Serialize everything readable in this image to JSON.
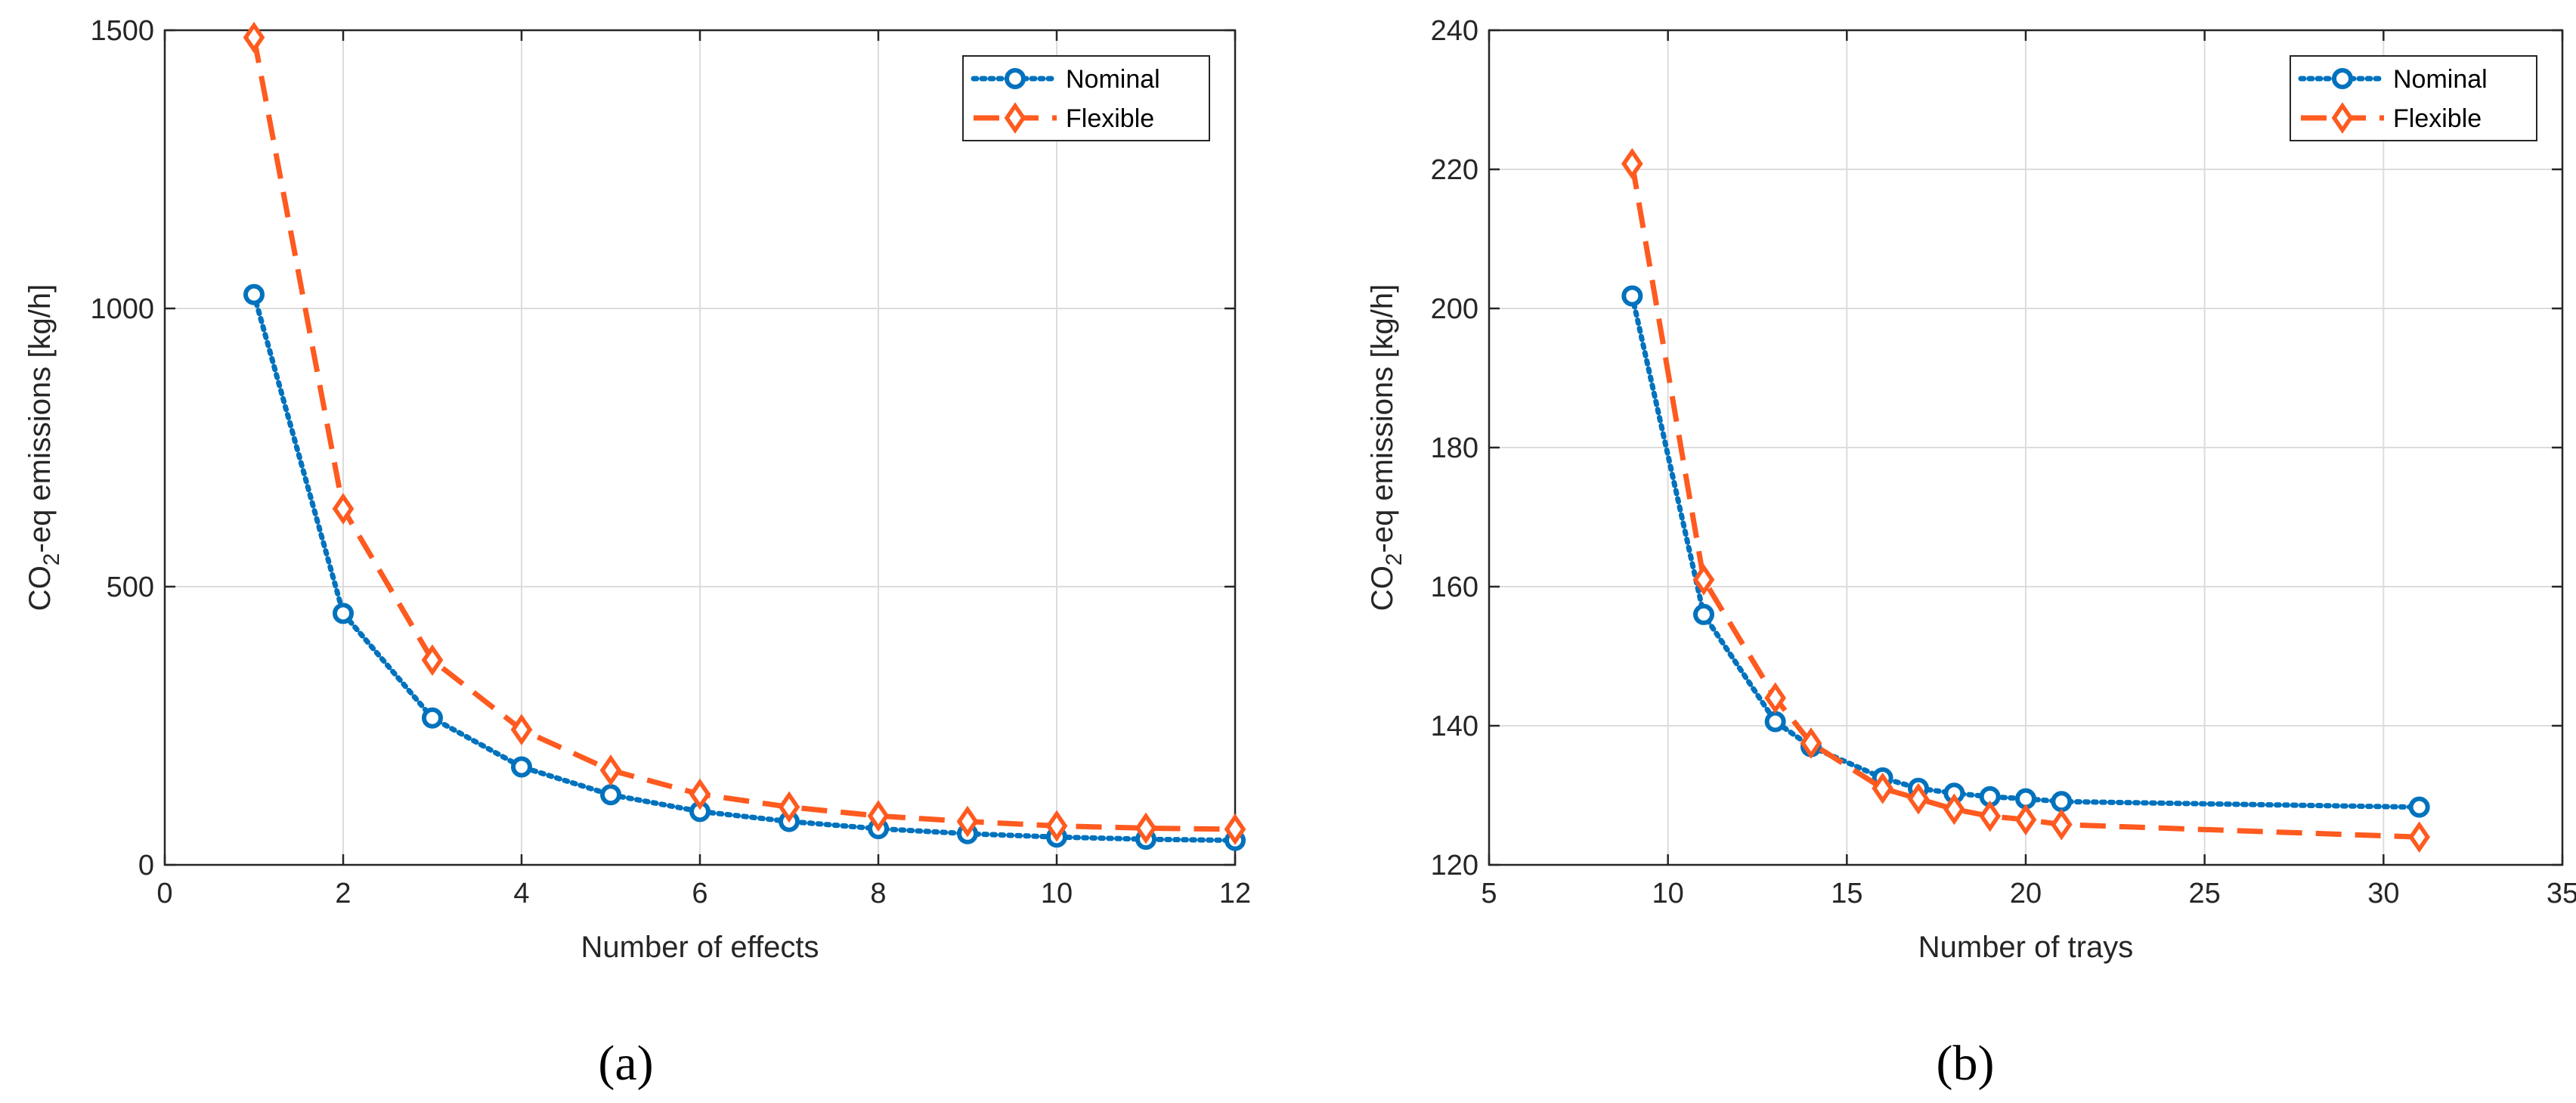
{
  "colors": {
    "nominal": "#0072BD",
    "flexible": "#FF5A1F",
    "grid": "#dcdcdc",
    "axis": "#262626"
  },
  "chart_data": [
    {
      "type": "line",
      "caption": "(a)",
      "xlabel": "Number of effects",
      "ylabel_main": "CO",
      "ylabel_sub": "2",
      "ylabel_rest": "-eq emissions [kg/h]",
      "xlim": [
        0,
        12
      ],
      "ylim": [
        0,
        1500
      ],
      "xticks": [
        0,
        2,
        4,
        6,
        8,
        10,
        12
      ],
      "yticks": [
        0,
        500,
        1000,
        1500
      ],
      "xtick_labels": [
        "0",
        "2",
        "4",
        "6",
        "8",
        "10",
        "12"
      ],
      "ytick_labels": [
        "0",
        "500",
        "1000",
        "1500"
      ],
      "grid": true,
      "legend_position": "top-right",
      "series": [
        {
          "name": "Nominal",
          "style": "dotted",
          "marker": "circle",
          "color_key": "nominal",
          "x": [
            1,
            2,
            3,
            4,
            5,
            6,
            7,
            8,
            9,
            10,
            11,
            12
          ],
          "y": [
            1025,
            452,
            264,
            176,
            126,
            96,
            78,
            65,
            56,
            50,
            46,
            44
          ]
        },
        {
          "name": "Flexible",
          "style": "dashed",
          "marker": "diamond",
          "color_key": "flexible",
          "x": [
            1,
            2,
            3,
            4,
            5,
            6,
            7,
            8,
            9,
            10,
            11,
            12
          ],
          "y": [
            1487,
            640,
            368,
            243,
            170,
            127,
            104,
            88,
            78,
            70,
            66,
            64
          ]
        }
      ]
    },
    {
      "type": "line",
      "caption": "(b)",
      "xlabel": "Number of trays",
      "ylabel_main": "CO",
      "ylabel_sub": "2",
      "ylabel_rest": "-eq emissions [kg/h]",
      "xlim": [
        5,
        35
      ],
      "ylim": [
        120,
        240
      ],
      "xticks": [
        5,
        10,
        15,
        20,
        25,
        30,
        35
      ],
      "yticks": [
        120,
        140,
        160,
        180,
        200,
        220,
        240
      ],
      "xtick_labels": [
        "5",
        "10",
        "15",
        "20",
        "25",
        "30",
        "35"
      ],
      "ytick_labels": [
        "120",
        "140",
        "160",
        "180",
        "200",
        "220",
        "240"
      ],
      "grid": true,
      "legend_position": "top-right",
      "series": [
        {
          "name": "Nominal",
          "style": "dotted",
          "marker": "circle",
          "color_key": "nominal",
          "x": [
            9,
            11,
            13,
            14,
            16,
            17,
            18,
            19,
            20,
            21,
            31
          ],
          "y": [
            201.8,
            156,
            140.6,
            137,
            132.5,
            131,
            130.3,
            129.8,
            129.5,
            129.1,
            128.3
          ]
        },
        {
          "name": "Flexible",
          "style": "dashed",
          "marker": "diamond",
          "color_key": "flexible",
          "x": [
            9,
            11,
            13,
            14,
            16,
            17,
            18,
            19,
            20,
            21,
            31
          ],
          "y": [
            220.8,
            161,
            144,
            137.5,
            131,
            129.5,
            128,
            127,
            126.5,
            125.8,
            124
          ]
        }
      ]
    }
  ]
}
